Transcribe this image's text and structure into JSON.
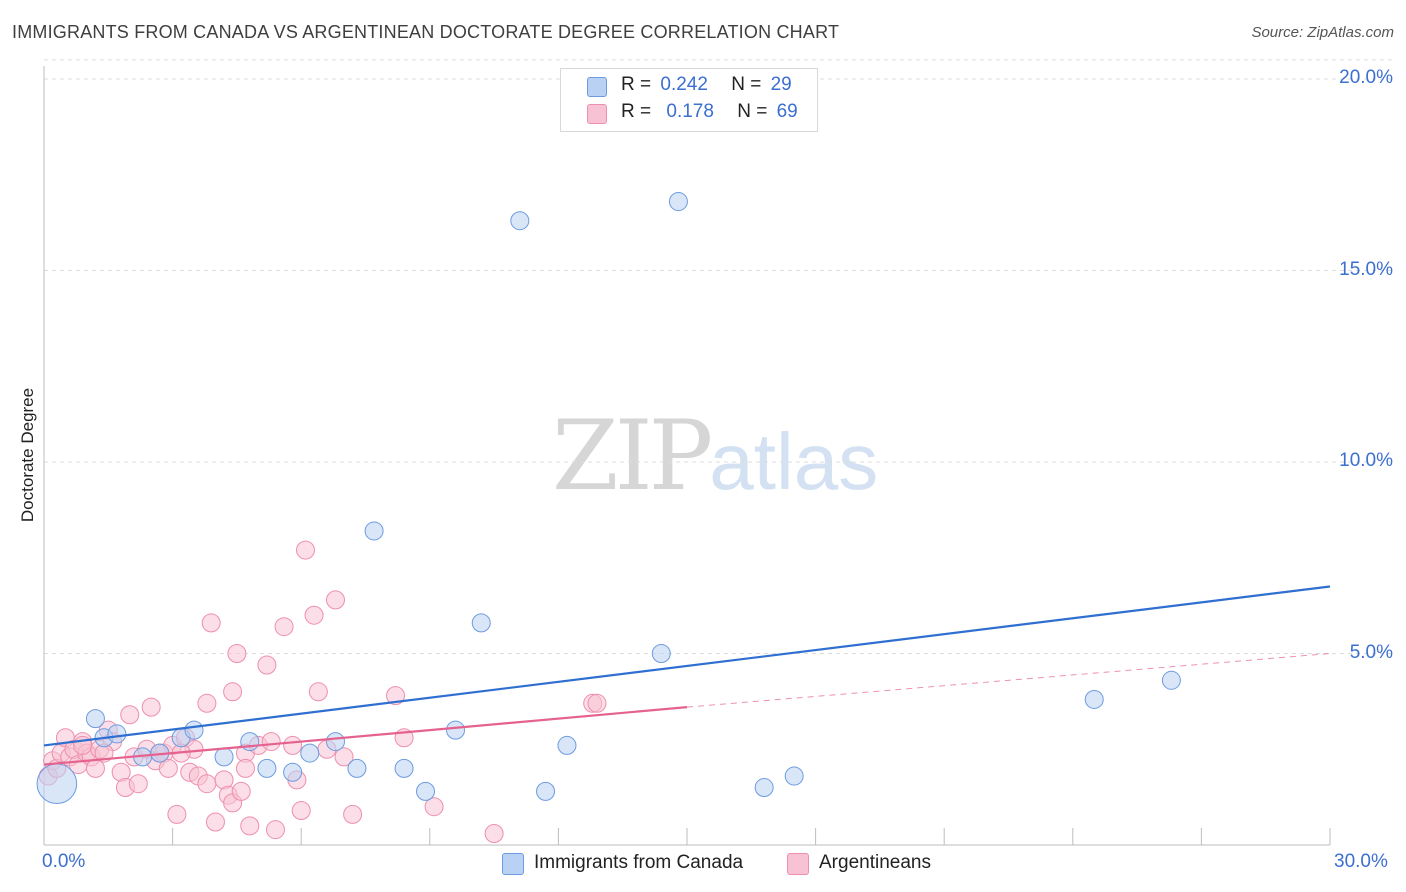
{
  "header": {
    "title": "IMMIGRANTS FROM CANADA VS ARGENTINEAN DOCTORATE DEGREE CORRELATION CHART",
    "source": "Source: ZipAtlas.com"
  },
  "watermark": {
    "zip": "ZIP",
    "atlas": "atlas"
  },
  "legend_top": {
    "rows": [
      {
        "r_label": "R =",
        "r_value": "0.242",
        "n_label": "N =",
        "n_value": "29"
      },
      {
        "r_label": "R =",
        "r_value": "0.178",
        "n_label": "N =",
        "n_value": "69"
      }
    ]
  },
  "colors": {
    "blue_fill": "#b9d1f2",
    "blue_stroke": "#6d9be0",
    "blue_line": "#2f6fd1",
    "pink_fill": "#f7c3d4",
    "pink_stroke": "#ee8fae",
    "pink_line": "#e5628f",
    "grid": "#dcdcdc",
    "axis_text": "#3b6fd0"
  },
  "chart_data": {
    "type": "scatter",
    "title": "IMMIGRANTS FROM CANADA VS ARGENTINEAN DOCTORATE DEGREE CORRELATION CHART",
    "xlabel": "",
    "ylabel": "Doctorate Degree",
    "xlim": [
      0,
      30
    ],
    "ylim": [
      0,
      20
    ],
    "x_tick_labels": [
      "0.0%",
      "30.0%"
    ],
    "y_ticks": [
      5,
      10,
      15,
      20
    ],
    "y_tick_labels": [
      "5.0%",
      "10.0%",
      "15.0%",
      "20.0%"
    ],
    "grid": true,
    "legend_position": "bottom",
    "series": [
      {
        "name": "Immigrants from Canada",
        "color": "blue",
        "r": 0.242,
        "n": 29,
        "trend": {
          "x0": 0,
          "y0": 2.6,
          "x1": 30,
          "y1": 6.75
        },
        "points": [
          [
            0.3,
            1.6,
            2.2
          ],
          [
            1.2,
            3.3,
            1
          ],
          [
            1.4,
            2.8,
            1
          ],
          [
            1.7,
            2.9,
            1
          ],
          [
            2.3,
            2.3,
            1
          ],
          [
            2.7,
            2.4,
            1
          ],
          [
            3.2,
            2.8,
            1
          ],
          [
            3.5,
            3.0,
            1
          ],
          [
            4.2,
            2.3,
            1
          ],
          [
            4.8,
            2.7,
            1
          ],
          [
            5.2,
            2.0,
            1
          ],
          [
            5.8,
            1.9,
            1
          ],
          [
            6.2,
            2.4,
            1
          ],
          [
            6.8,
            2.7,
            1
          ],
          [
            7.3,
            2.0,
            1
          ],
          [
            7.7,
            8.2,
            1
          ],
          [
            8.4,
            2.0,
            1
          ],
          [
            8.9,
            1.4,
            1
          ],
          [
            9.6,
            3.0,
            1
          ],
          [
            10.2,
            5.8,
            1
          ],
          [
            11.1,
            16.3,
            1
          ],
          [
            11.7,
            1.4,
            1
          ],
          [
            12.2,
            2.6,
            1
          ],
          [
            14.4,
            5.0,
            1
          ],
          [
            14.8,
            16.8,
            1
          ],
          [
            16.8,
            1.5,
            1
          ],
          [
            17.5,
            1.8,
            1
          ],
          [
            24.5,
            3.8,
            1
          ],
          [
            26.3,
            4.3,
            1
          ]
        ]
      },
      {
        "name": "Argentineans",
        "color": "pink",
        "r": 0.178,
        "n": 69,
        "trend": {
          "x0": 0,
          "y0": 2.1,
          "x1": 15,
          "y1": 3.6
        },
        "trend_dashed": {
          "x0": 15,
          "y0": 3.6,
          "x1": 30,
          "y1": 5.0
        },
        "points": [
          [
            0.1,
            1.8,
            1
          ],
          [
            0.2,
            2.2,
            1
          ],
          [
            0.3,
            2.0,
            1
          ],
          [
            0.4,
            2.4,
            1
          ],
          [
            0.5,
            2.8,
            1
          ],
          [
            0.6,
            2.3,
            1
          ],
          [
            0.7,
            2.5,
            1
          ],
          [
            0.8,
            2.1,
            1
          ],
          [
            0.9,
            2.7,
            1
          ],
          [
            1.0,
            2.4,
            1
          ],
          [
            1.1,
            2.3,
            1
          ],
          [
            1.2,
            2.0,
            1
          ],
          [
            1.3,
            2.5,
            1
          ],
          [
            1.5,
            3.0,
            1
          ],
          [
            1.6,
            2.7,
            1
          ],
          [
            1.8,
            1.9,
            1
          ],
          [
            1.9,
            1.5,
            1
          ],
          [
            2.0,
            3.4,
            1
          ],
          [
            2.1,
            2.3,
            1
          ],
          [
            2.2,
            1.6,
            1
          ],
          [
            2.4,
            2.5,
            1
          ],
          [
            2.5,
            3.6,
            1
          ],
          [
            2.6,
            2.2,
            1
          ],
          [
            2.8,
            2.4,
            1
          ],
          [
            2.9,
            2.0,
            1
          ],
          [
            3.0,
            2.6,
            1
          ],
          [
            3.1,
            0.8,
            1
          ],
          [
            3.3,
            2.8,
            1
          ],
          [
            3.4,
            1.9,
            1
          ],
          [
            3.5,
            2.5,
            1
          ],
          [
            3.6,
            1.8,
            1
          ],
          [
            3.8,
            1.6,
            1
          ],
          [
            3.8,
            3.7,
            1
          ],
          [
            3.9,
            5.8,
            1
          ],
          [
            4.0,
            0.6,
            1
          ],
          [
            4.2,
            1.7,
            1
          ],
          [
            4.3,
            1.3,
            1
          ],
          [
            4.4,
            1.1,
            1
          ],
          [
            4.4,
            4.0,
            1
          ],
          [
            4.5,
            5.0,
            1
          ],
          [
            4.6,
            1.4,
            1
          ],
          [
            4.7,
            2.4,
            1
          ],
          [
            4.7,
            2.0,
            1
          ],
          [
            4.8,
            0.5,
            1
          ],
          [
            5.0,
            2.6,
            1
          ],
          [
            5.2,
            4.7,
            1
          ],
          [
            5.3,
            2.7,
            1
          ],
          [
            5.4,
            0.4,
            1
          ],
          [
            5.6,
            5.7,
            1
          ],
          [
            5.8,
            2.6,
            1
          ],
          [
            5.9,
            1.7,
            1
          ],
          [
            6.0,
            0.9,
            1
          ],
          [
            6.1,
            7.7,
            1
          ],
          [
            6.3,
            6.0,
            1
          ],
          [
            6.4,
            4.0,
            1
          ],
          [
            6.6,
            2.5,
            1
          ],
          [
            6.8,
            6.4,
            1
          ],
          [
            7.0,
            2.3,
            1
          ],
          [
            7.2,
            0.8,
            1
          ],
          [
            8.2,
            3.9,
            1
          ],
          [
            8.4,
            2.8,
            1
          ],
          [
            9.1,
            1.0,
            1
          ],
          [
            10.5,
            0.3,
            1
          ],
          [
            12.8,
            3.7,
            1
          ],
          [
            12.9,
            3.7,
            1
          ],
          [
            1.4,
            2.4,
            1
          ],
          [
            2.7,
            2.4,
            1
          ],
          [
            3.2,
            2.4,
            1
          ],
          [
            0.9,
            2.6,
            1
          ]
        ]
      }
    ]
  },
  "legend_bottom": {
    "items": [
      {
        "label": "Immigrants from Canada"
      },
      {
        "label": "Argentineans"
      }
    ]
  }
}
